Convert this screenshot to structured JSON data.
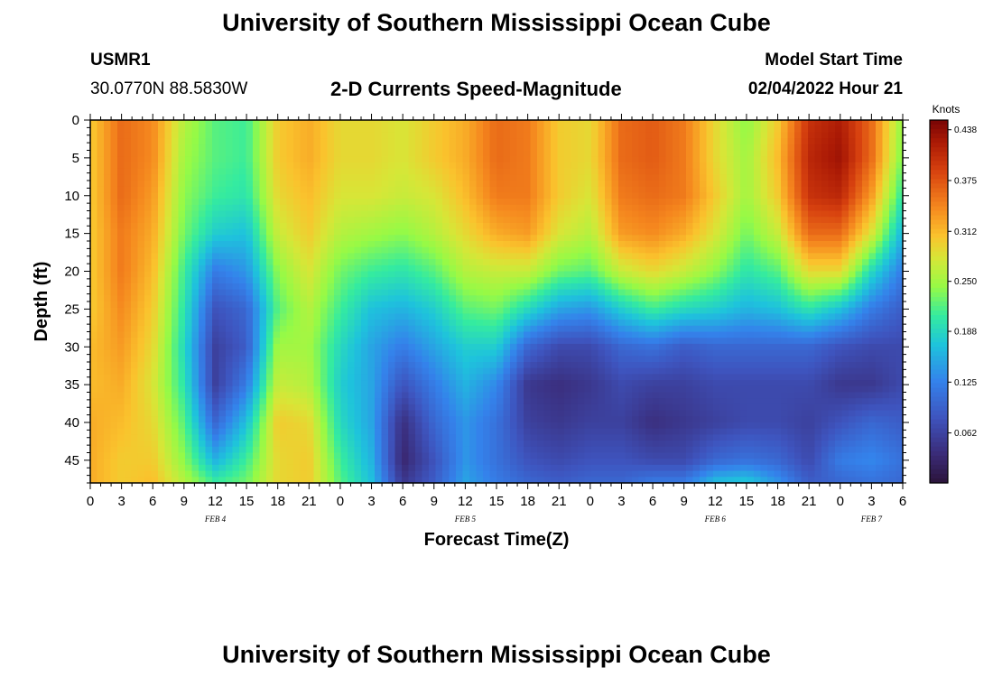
{
  "page": {
    "title": "University of Southern Mississippi Ocean Cube",
    "footer_title": "University of Southern Mississippi Ocean Cube"
  },
  "header": {
    "station": "USMR1",
    "coords": "30.0770N  88.5830W",
    "subtitle": "2-D Currents Speed-Magnitude",
    "model_label": "Model Start Time",
    "model_time": "02/04/2022 Hour 21"
  },
  "chart_data": {
    "type": "heatmap",
    "title": "2-D Currents Speed-Magnitude",
    "xlabel": "Forecast Time(Z)",
    "ylabel": "Depth (ft)",
    "x_hours_start": 0,
    "x_hours_end": 78,
    "x_tick_labels": [
      "0",
      "3",
      "6",
      "9",
      "12",
      "15",
      "18",
      "21",
      "0",
      "3",
      "6",
      "9",
      "12",
      "15",
      "18",
      "21",
      "0",
      "3",
      "6",
      "9",
      "12",
      "15",
      "18",
      "21",
      "0",
      "3",
      "6"
    ],
    "date_labels": [
      {
        "label": "FEB 4",
        "hour": 12
      },
      {
        "label": "FEB 5",
        "hour": 36
      },
      {
        "label": "FEB 6",
        "hour": 60
      },
      {
        "label": "FEB 7",
        "hour": 75
      }
    ],
    "y_range": [
      0,
      48
    ],
    "y_tick_labels": [
      "0",
      "5",
      "10",
      "15",
      "20",
      "25",
      "30",
      "35",
      "40",
      "45"
    ],
    "colorbar": {
      "title": "Knots",
      "min": 0.0,
      "max": 0.45,
      "tick_labels": [
        "0.438",
        "0.375",
        "0.312",
        "0.250",
        "0.188",
        "0.125",
        "0.062"
      ]
    },
    "grid_hours": [
      0,
      3,
      6,
      9,
      12,
      15,
      18,
      21,
      24,
      27,
      30,
      33,
      36,
      39,
      42,
      45,
      48,
      51,
      54,
      57,
      60,
      63,
      66,
      69,
      72,
      75,
      78
    ],
    "grid_depths": [
      0,
      5,
      10,
      15,
      20,
      25,
      30,
      35,
      40,
      45,
      48
    ],
    "values": [
      [
        0.3,
        0.3,
        0.3,
        0.3,
        0.3,
        0.3,
        0.31,
        0.31,
        0.32,
        0.32,
        0.32
      ],
      [
        0.36,
        0.36,
        0.36,
        0.35,
        0.35,
        0.34,
        0.33,
        0.32,
        0.31,
        0.3,
        0.3
      ],
      [
        0.34,
        0.34,
        0.33,
        0.32,
        0.31,
        0.3,
        0.29,
        0.28,
        0.29,
        0.3,
        0.31
      ],
      [
        0.26,
        0.25,
        0.24,
        0.23,
        0.21,
        0.2,
        0.19,
        0.2,
        0.22,
        0.24,
        0.26
      ],
      [
        0.22,
        0.22,
        0.21,
        0.18,
        0.12,
        0.08,
        0.06,
        0.06,
        0.1,
        0.16,
        0.21
      ],
      [
        0.21,
        0.21,
        0.2,
        0.17,
        0.14,
        0.1,
        0.09,
        0.12,
        0.17,
        0.21,
        0.23
      ],
      [
        0.3,
        0.3,
        0.29,
        0.27,
        0.24,
        0.22,
        0.25,
        0.27,
        0.3,
        0.29,
        0.29
      ],
      [
        0.32,
        0.32,
        0.31,
        0.3,
        0.28,
        0.26,
        0.25,
        0.26,
        0.29,
        0.3,
        0.3
      ],
      [
        0.29,
        0.29,
        0.28,
        0.26,
        0.23,
        0.21,
        0.19,
        0.18,
        0.19,
        0.21,
        0.22
      ],
      [
        0.29,
        0.29,
        0.28,
        0.25,
        0.21,
        0.17,
        0.15,
        0.15,
        0.15,
        0.16,
        0.17
      ],
      [
        0.28,
        0.28,
        0.27,
        0.24,
        0.2,
        0.16,
        0.12,
        0.08,
        0.04,
        0.03,
        0.05
      ],
      [
        0.3,
        0.3,
        0.28,
        0.26,
        0.22,
        0.18,
        0.15,
        0.12,
        0.1,
        0.08,
        0.09
      ],
      [
        0.32,
        0.32,
        0.31,
        0.29,
        0.26,
        0.22,
        0.18,
        0.16,
        0.14,
        0.14,
        0.15
      ],
      [
        0.36,
        0.36,
        0.35,
        0.32,
        0.27,
        0.23,
        0.18,
        0.13,
        0.11,
        0.11,
        0.12
      ],
      [
        0.35,
        0.35,
        0.35,
        0.33,
        0.27,
        0.19,
        0.1,
        0.05,
        0.06,
        0.08,
        0.1
      ],
      [
        0.3,
        0.3,
        0.3,
        0.28,
        0.23,
        0.15,
        0.07,
        0.04,
        0.05,
        0.07,
        0.09
      ],
      [
        0.29,
        0.29,
        0.28,
        0.26,
        0.22,
        0.14,
        0.07,
        0.05,
        0.06,
        0.08,
        0.1
      ],
      [
        0.36,
        0.36,
        0.35,
        0.33,
        0.27,
        0.18,
        0.1,
        0.07,
        0.06,
        0.08,
        0.1
      ],
      [
        0.37,
        0.37,
        0.36,
        0.34,
        0.29,
        0.21,
        0.11,
        0.06,
        0.04,
        0.07,
        0.12
      ],
      [
        0.35,
        0.35,
        0.35,
        0.32,
        0.27,
        0.19,
        0.09,
        0.06,
        0.05,
        0.07,
        0.12
      ],
      [
        0.29,
        0.29,
        0.3,
        0.28,
        0.24,
        0.18,
        0.1,
        0.07,
        0.06,
        0.1,
        0.17
      ],
      [
        0.24,
        0.25,
        0.25,
        0.23,
        0.2,
        0.16,
        0.1,
        0.07,
        0.07,
        0.11,
        0.18
      ],
      [
        0.3,
        0.31,
        0.3,
        0.27,
        0.22,
        0.17,
        0.1,
        0.07,
        0.07,
        0.1,
        0.14
      ],
      [
        0.4,
        0.41,
        0.4,
        0.36,
        0.29,
        0.2,
        0.1,
        0.07,
        0.06,
        0.07,
        0.09
      ],
      [
        0.42,
        0.43,
        0.41,
        0.36,
        0.29,
        0.17,
        0.08,
        0.05,
        0.08,
        0.12,
        0.1
      ],
      [
        0.36,
        0.36,
        0.33,
        0.28,
        0.19,
        0.12,
        0.07,
        0.05,
        0.1,
        0.13,
        0.11
      ],
      [
        0.24,
        0.23,
        0.2,
        0.16,
        0.12,
        0.09,
        0.07,
        0.07,
        0.09,
        0.11,
        0.1
      ]
    ]
  }
}
